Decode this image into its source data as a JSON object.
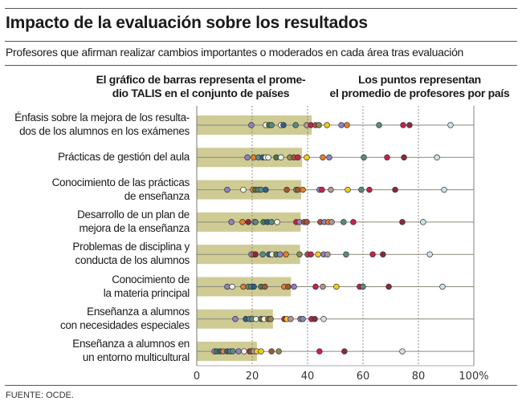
{
  "chart_data": {
    "type": "bar",
    "title": "Impacto de la evaluación sobre los resultados",
    "subtitle": "Profesores que afirman realizar cambios importantes o moderados en cada área tras evaluación",
    "legend": {
      "bars": [
        "El gráfico de barras representa el prome-",
        "dio TALIS en el conjunto de países"
      ],
      "dots": [
        "Los puntos representan",
        "el promedio de profesores por país"
      ]
    },
    "xlabel": "",
    "ylabel": "",
    "xlim": [
      0,
      100
    ],
    "x_ticks": [
      "0",
      "20",
      "40",
      "60",
      "80",
      "100%"
    ],
    "x_tick_values": [
      0,
      20,
      40,
      60,
      80,
      100
    ],
    "grid": "vertical dashed at 20, 40, 60, 80",
    "colors": {
      "bar": "#cfcb94",
      "purple": "#8c82c4",
      "white": "#f2f2e6",
      "green": "#4e7a45",
      "teal": "#5b8a80",
      "blue": "#2e5e8e",
      "mauve": "#b39596",
      "red": "#cc1f4a",
      "brown": "#a0553a",
      "olive": "#8a8a55",
      "yellow": "#f2cc1a",
      "orange": "#e67e2a",
      "darkred": "#8a2a3a",
      "lightblue": "#cde0e6"
    },
    "categories": [
      [
        "Énfasis sobre la mejora de los resulta-",
        "dos de los alumnos en los exámenes"
      ],
      [
        "Prácticas de gestión del aula"
      ],
      [
        "Conocimiento de las prácticas",
        "de enseñanza"
      ],
      [
        "Desarrollo de un plan de",
        "mejora de la enseñanza"
      ],
      [
        "Problemas de disciplina y",
        "conducta de los alumnos"
      ],
      [
        "Conocimiento de",
        "la materia principal"
      ],
      [
        "Enseñanza a alumnos",
        "con necesidades especiales"
      ],
      [
        "Enseñanza a alumnos en",
        "un entorno multicultural"
      ]
    ],
    "series": [
      {
        "name": "Promedio TALIS",
        "type": "bar",
        "values": [
          41.5,
          38,
          37.7,
          37.5,
          37.3,
          34,
          27.5,
          21.7
        ]
      },
      {
        "name": "Promedio por país",
        "type": "scatter",
        "points": [
          [
            [
              19.7,
              "purple"
            ],
            [
              24.9,
              "white"
            ],
            [
              26.1,
              "green"
            ],
            [
              27,
              "teal"
            ],
            [
              30.4,
              "white"
            ],
            [
              31.3,
              "blue"
            ],
            [
              35.7,
              "teal"
            ],
            [
              39.7,
              "mauve"
            ],
            [
              41.2,
              "red"
            ],
            [
              42.9,
              "brown"
            ],
            [
              44.1,
              "olive"
            ],
            [
              47,
              "yellow"
            ],
            [
              52.2,
              "purple"
            ],
            [
              54.2,
              "orange"
            ],
            [
              65.8,
              "teal"
            ],
            [
              74.5,
              "red"
            ],
            [
              76.8,
              "darkred"
            ],
            [
              91.6,
              "lightblue"
            ]
          ],
          [
            [
              18.3,
              "purple"
            ],
            [
              20.6,
              "orange"
            ],
            [
              22.3,
              "teal"
            ],
            [
              23.8,
              "blue"
            ],
            [
              24.9,
              "white"
            ],
            [
              25.8,
              "white"
            ],
            [
              28.7,
              "green"
            ],
            [
              30.4,
              "white"
            ],
            [
              33.6,
              "olive"
            ],
            [
              35.1,
              "brown"
            ],
            [
              36.5,
              "red"
            ],
            [
              39.7,
              "yellow"
            ],
            [
              45.5,
              "orange"
            ],
            [
              47.8,
              "purple"
            ],
            [
              60.3,
              "teal"
            ],
            [
              68.7,
              "red"
            ],
            [
              74.8,
              "darkred"
            ],
            [
              86.7,
              "lightblue"
            ]
          ],
          [
            [
              11,
              "purple"
            ],
            [
              16.8,
              "white"
            ],
            [
              20.3,
              "orange"
            ],
            [
              21.2,
              "green"
            ],
            [
              22.3,
              "teal"
            ],
            [
              23.2,
              "teal"
            ],
            [
              24.9,
              "blue"
            ],
            [
              32.5,
              "brown"
            ],
            [
              35.9,
              "olive"
            ],
            [
              36.5,
              "brown"
            ],
            [
              38.3,
              "orange"
            ],
            [
              44.3,
              "purple"
            ],
            [
              45.2,
              "red"
            ],
            [
              48.4,
              "mauve"
            ],
            [
              54.5,
              "yellow"
            ],
            [
              59.4,
              "teal"
            ],
            [
              62.3,
              "red"
            ],
            [
              71.6,
              "darkred"
            ],
            [
              89.3,
              "lightblue"
            ]
          ],
          [
            [
              12.5,
              "purple"
            ],
            [
              16.5,
              "orange"
            ],
            [
              18.6,
              "darkred"
            ],
            [
              20.9,
              "white"
            ],
            [
              21.2,
              "teal"
            ],
            [
              24.1,
              "green"
            ],
            [
              25.5,
              "blue"
            ],
            [
              27,
              "teal"
            ],
            [
              29,
              "white"
            ],
            [
              35.9,
              "red"
            ],
            [
              37.1,
              "purple"
            ],
            [
              38.8,
              "brown"
            ],
            [
              39.7,
              "brown"
            ],
            [
              44.6,
              "brown"
            ],
            [
              46.1,
              "purple"
            ],
            [
              47.5,
              "orange"
            ],
            [
              48.7,
              "mauve"
            ],
            [
              53,
              "teal"
            ],
            [
              56.5,
              "red"
            ],
            [
              74.2,
              "darkred"
            ],
            [
              81.7,
              "lightblue"
            ]
          ],
          [
            [
              19.7,
              "purple"
            ],
            [
              20.6,
              "orange"
            ],
            [
              21.2,
              "darkred"
            ],
            [
              23.8,
              "teal"
            ],
            [
              26.1,
              "blue"
            ],
            [
              27.2,
              "white"
            ],
            [
              28.7,
              "green"
            ],
            [
              30.1,
              "purple"
            ],
            [
              32.2,
              "orange"
            ],
            [
              37.1,
              "olive"
            ],
            [
              40,
              "brown"
            ],
            [
              41.2,
              "red"
            ],
            [
              43.8,
              "yellow"
            ],
            [
              45.8,
              "purple"
            ],
            [
              47.2,
              "mauve"
            ],
            [
              53.9,
              "teal"
            ],
            [
              63.5,
              "red"
            ],
            [
              67.2,
              "darkred"
            ],
            [
              84.1,
              "lightblue"
            ]
          ],
          [
            [
              11,
              "purple"
            ],
            [
              12.8,
              "white"
            ],
            [
              16.8,
              "orange"
            ],
            [
              18.6,
              "teal"
            ],
            [
              19.7,
              "teal"
            ],
            [
              20.6,
              "blue"
            ],
            [
              23.2,
              "green"
            ],
            [
              24.6,
              "brown"
            ],
            [
              31.6,
              "orange"
            ],
            [
              33,
              "brown"
            ],
            [
              35.1,
              "purple"
            ],
            [
              42.9,
              "red"
            ],
            [
              45.5,
              "mauve"
            ],
            [
              50.4,
              "yellow"
            ],
            [
              58.8,
              "red"
            ],
            [
              60,
              "teal"
            ],
            [
              69.3,
              "darkred"
            ],
            [
              88.7,
              "lightblue"
            ]
          ],
          [
            [
              13.9,
              "purple"
            ],
            [
              17.7,
              "blue"
            ],
            [
              19.1,
              "teal"
            ],
            [
              20,
              "teal"
            ],
            [
              21.4,
              "white"
            ],
            [
              23.2,
              "green"
            ],
            [
              24.3,
              "white"
            ],
            [
              25.8,
              "brown"
            ],
            [
              26.7,
              "olive"
            ],
            [
              31.6,
              "red"
            ],
            [
              32.5,
              "yellow"
            ],
            [
              33.9,
              "mauve"
            ],
            [
              37.4,
              "olive"
            ],
            [
              38.3,
              "purple"
            ],
            [
              41.4,
              "red"
            ],
            [
              42.6,
              "darkred"
            ],
            [
              45.8,
              "lightblue"
            ]
          ],
          [
            [
              6.4,
              "purple"
            ],
            [
              7.2,
              "green"
            ],
            [
              8.4,
              "blue"
            ],
            [
              9.6,
              "orange"
            ],
            [
              11,
              "blue"
            ],
            [
              12.2,
              "teal"
            ],
            [
              13,
              "teal"
            ],
            [
              15.1,
              "purple"
            ],
            [
              17.1,
              "white"
            ],
            [
              19.1,
              "red"
            ],
            [
              19.7,
              "brown"
            ],
            [
              20.6,
              "mauve"
            ],
            [
              21.7,
              "yellow"
            ],
            [
              23.2,
              "yellow"
            ],
            [
              27,
              "brown"
            ],
            [
              29.6,
              "olive"
            ],
            [
              44.3,
              "red"
            ],
            [
              53.3,
              "darkred"
            ],
            [
              74.2,
              "lightblue"
            ]
          ]
        ]
      }
    ],
    "source": "FUENTE: OCDE."
  }
}
